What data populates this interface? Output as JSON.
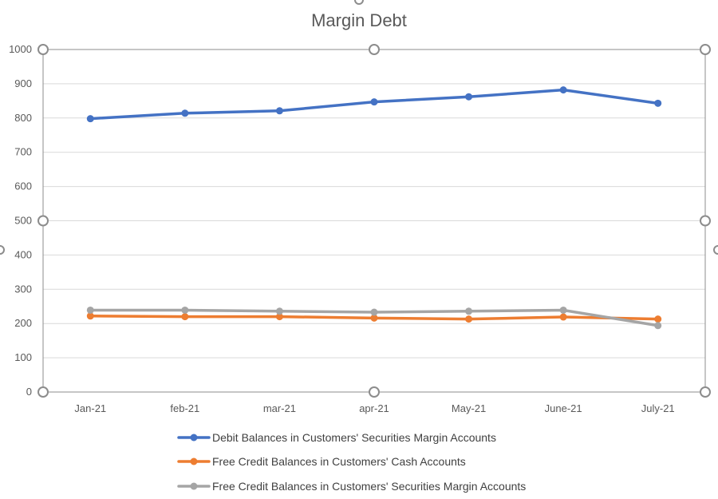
{
  "chart_data": {
    "type": "line",
    "title": "Margin Debt",
    "categories": [
      "Jan-21",
      "feb-21",
      "mar-21",
      "apr-21",
      "May-21",
      "June-21",
      "July-21"
    ],
    "ylim": [
      0,
      1000
    ],
    "yticks": [
      0,
      100,
      200,
      300,
      400,
      500,
      600,
      700,
      800,
      900,
      1000
    ],
    "grid": true,
    "legend_position": "bottom",
    "series": [
      {
        "name": "Debit Balances in Customers' Securities Margin Accounts",
        "color": "#4472c4",
        "values": [
          798,
          814,
          821,
          847,
          862,
          882,
          843
        ]
      },
      {
        "name": "Free Credit Balances in Customers' Cash Accounts",
        "color": "#ed7d31",
        "values": [
          222,
          220,
          220,
          216,
          213,
          219,
          213
        ]
      },
      {
        "name": "Free Credit Balances in Customers' Securities Margin Accounts",
        "color": "#a5a5a5",
        "values": [
          239,
          239,
          236,
          233,
          236,
          239,
          194
        ]
      }
    ]
  }
}
